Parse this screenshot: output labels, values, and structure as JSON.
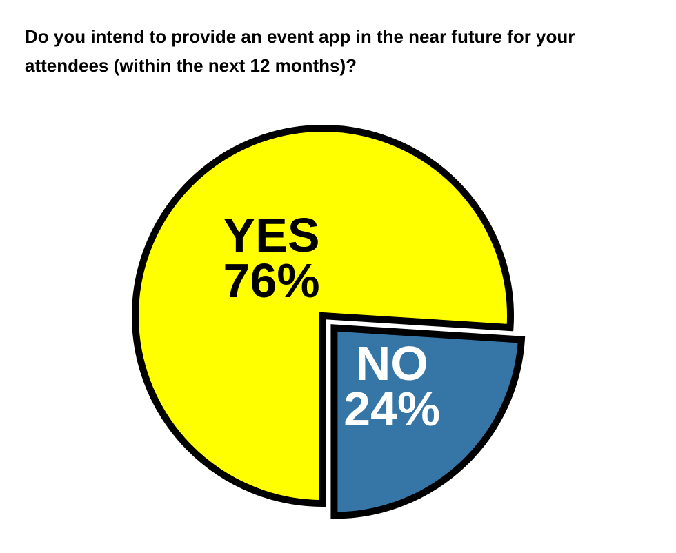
{
  "chart_data": {
    "type": "pie",
    "title": "Do you intend to provide an event app in the near future for your attendees (within the next 12 months)?",
    "categories": [
      "YES",
      "NO"
    ],
    "values": [
      76,
      24
    ],
    "value_labels": [
      "76%",
      "24%"
    ],
    "colors": [
      "#ffff00",
      "#3576a6"
    ],
    "label_colors": [
      "#000000",
      "#ffffff"
    ]
  }
}
